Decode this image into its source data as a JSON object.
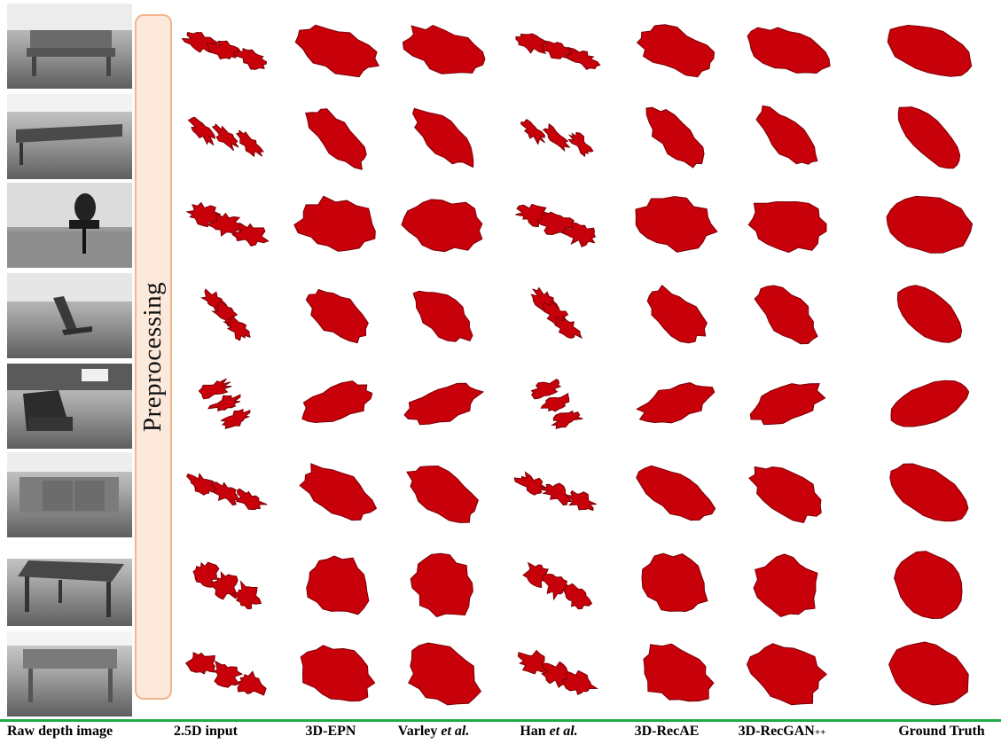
{
  "sidebar": {
    "preprocessing_label": "Preprocessing"
  },
  "columns": [
    {
      "id": "raw",
      "label": "Raw depth image"
    },
    {
      "id": "input",
      "label": "2.5D input"
    },
    {
      "id": "epn",
      "label": "3D-EPN"
    },
    {
      "id": "varley",
      "label": "Varley et al."
    },
    {
      "id": "han",
      "label": "Han et al."
    },
    {
      "id": "recae",
      "label": "3D-RecAE"
    },
    {
      "id": "recgan",
      "label": "3D-RecGAN++"
    },
    {
      "id": "gt",
      "label": "Ground Truth"
    }
  ],
  "row_objects": [
    "bench",
    "bench",
    "office-chair",
    "chair",
    "armchair",
    "sofa",
    "table",
    "desk"
  ],
  "colors": {
    "shape_red": "#c8000a",
    "shape_dark": "#7a0005",
    "divider_green": "#22aa4a",
    "prep_fill": "#fde9dc",
    "prep_border": "#f2b489"
  }
}
